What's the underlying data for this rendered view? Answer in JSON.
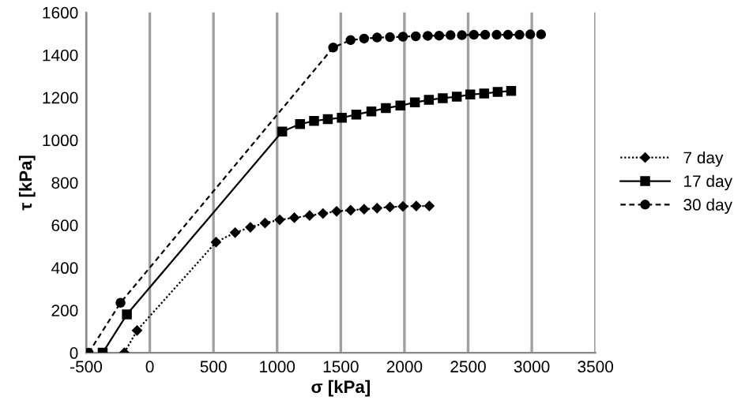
{
  "chart_data": {
    "type": "line",
    "xlabel": "σ [kPa]",
    "ylabel": "τ [kPa]",
    "xlim": [
      -500,
      3500
    ],
    "xticks": [
      -500,
      0,
      500,
      1000,
      1500,
      2000,
      2500,
      3000,
      3500
    ],
    "ylim": [
      0,
      1600
    ],
    "yticks": [
      0,
      200,
      400,
      600,
      800,
      1000,
      1200,
      1400,
      1600
    ],
    "grid": "x",
    "legend": "right",
    "series": [
      {
        "name": "7 day",
        "color": "#000000",
        "marker": "diamond",
        "line_style": "dotted",
        "x": [
          -200,
          -100,
          520,
          670,
          790,
          905,
          1020,
          1135,
          1255,
          1360,
          1467,
          1577,
          1683,
          1785,
          1886,
          1988,
          2093,
          2195
        ],
        "values": [
          0,
          105,
          520,
          565,
          590,
          610,
          625,
          635,
          645,
          655,
          665,
          670,
          675,
          680,
          685,
          688,
          690,
          690
        ]
      },
      {
        "name": "17 day",
        "color": "#000000",
        "marker": "square",
        "line_style": "solid",
        "x": [
          -370,
          -180,
          1040,
          1180,
          1290,
          1398,
          1508,
          1622,
          1740,
          1854,
          1968,
          2082,
          2192,
          2301,
          2411,
          2517,
          2626,
          2732,
          2838
        ],
        "values": [
          0,
          180,
          1040,
          1075,
          1090,
          1098,
          1105,
          1120,
          1135,
          1150,
          1162,
          1177,
          1189,
          1197,
          1204,
          1214,
          1219,
          1226,
          1231
        ]
      },
      {
        "name": "30 day",
        "color": "#000000",
        "marker": "circle",
        "line_style": "dashed",
        "x": [
          -480,
          -230,
          1440,
          1577,
          1683,
          1785,
          1886,
          1988,
          2089,
          2183,
          2272,
          2362,
          2451,
          2545,
          2634,
          2724,
          2813,
          2903,
          2988,
          3073
        ],
        "values": [
          0,
          235,
          1435,
          1470,
          1477,
          1482,
          1484,
          1486,
          1488,
          1490,
          1491,
          1493,
          1493,
          1495,
          1495,
          1495,
          1495,
          1495,
          1497,
          1497
        ]
      }
    ]
  }
}
